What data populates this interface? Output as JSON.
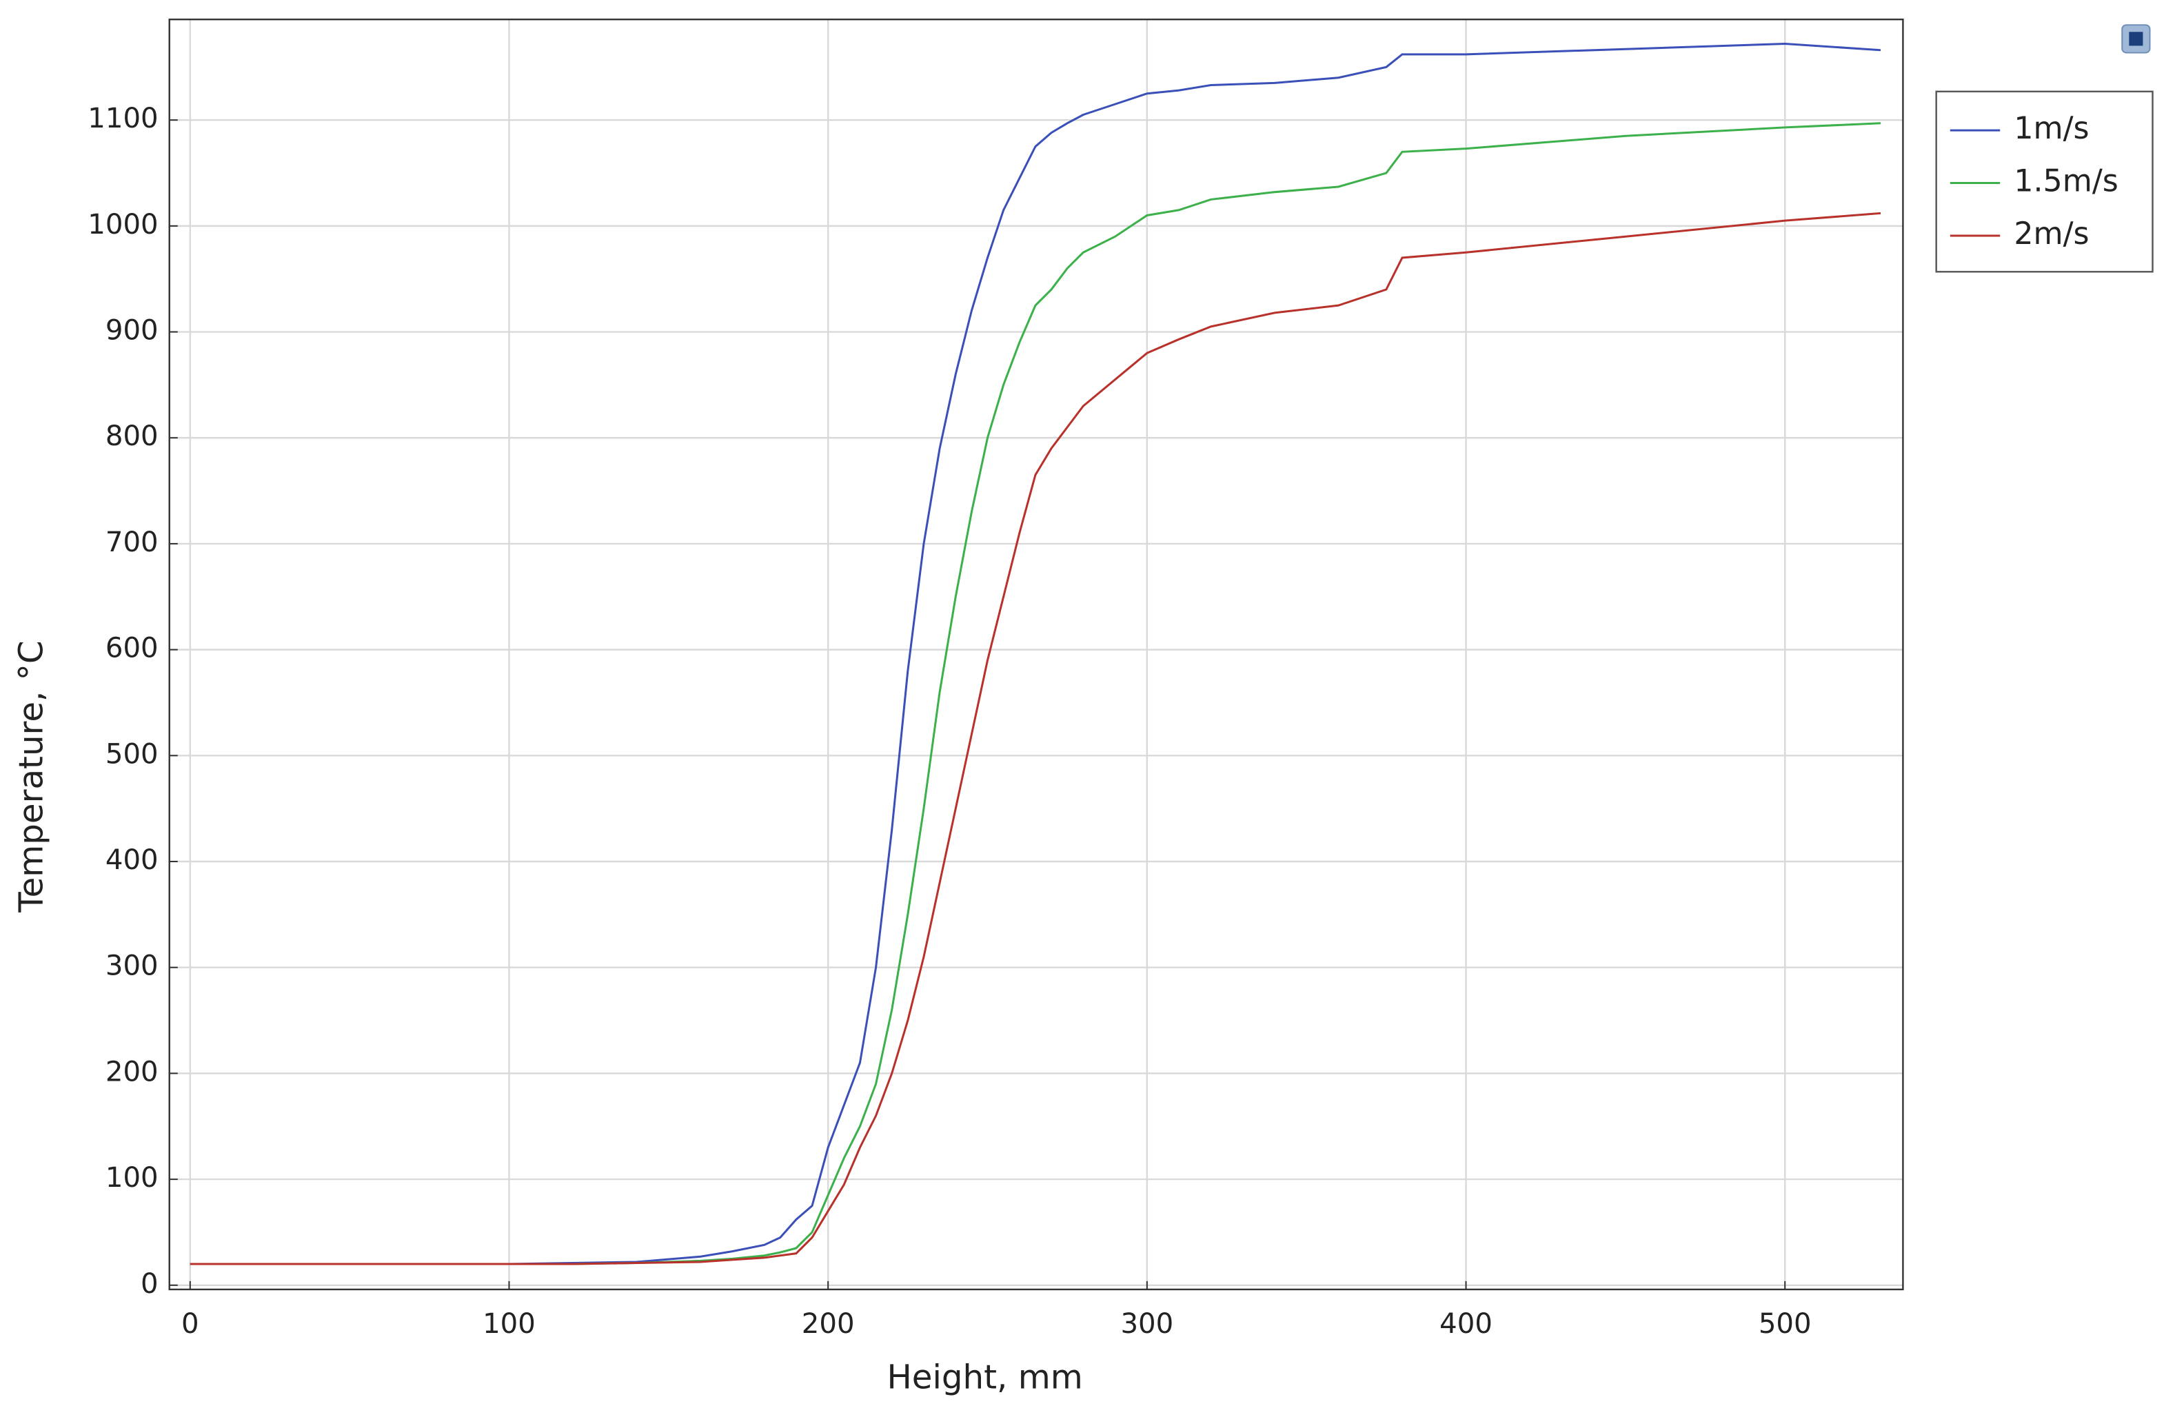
{
  "chart_data": {
    "type": "line",
    "x_label": "Height, mm",
    "y_label": "Temperature, °C",
    "x": [
      0,
      100,
      120,
      140,
      160,
      170,
      180,
      185,
      190,
      195,
      200,
      205,
      210,
      215,
      220,
      225,
      230,
      235,
      240,
      245,
      250,
      255,
      260,
      265,
      270,
      275,
      280,
      290,
      300,
      310,
      320,
      340,
      360,
      375,
      380,
      400,
      450,
      500,
      530
    ],
    "series": [
      {
        "name": "1m/s",
        "color": "#3a4fb8",
        "values": [
          20,
          20,
          21,
          22,
          27,
          32,
          38,
          45,
          62,
          75,
          130,
          170,
          210,
          300,
          430,
          580,
          700,
          790,
          860,
          920,
          970,
          1015,
          1045,
          1075,
          1088,
          1097,
          1105,
          1115,
          1125,
          1128,
          1133,
          1135,
          1140,
          1150,
          1162,
          1162,
          1167,
          1172,
          1166
        ]
      },
      {
        "name": "1.5m/s",
        "color": "#3cb04a",
        "values": [
          20,
          20,
          20,
          21,
          23,
          25,
          28,
          31,
          35,
          50,
          85,
          120,
          150,
          190,
          260,
          350,
          450,
          560,
          650,
          730,
          800,
          850,
          890,
          925,
          940,
          960,
          975,
          990,
          1010,
          1015,
          1025,
          1032,
          1037,
          1050,
          1070,
          1073,
          1085,
          1093,
          1097
        ]
      },
      {
        "name": "2m/s",
        "color": "#b8312a",
        "values": [
          20,
          20,
          20,
          21,
          22,
          24,
          26,
          28,
          30,
          45,
          70,
          95,
          130,
          160,
          200,
          250,
          310,
          380,
          450,
          520,
          590,
          650,
          710,
          765,
          790,
          810,
          830,
          855,
          880,
          893,
          905,
          918,
          925,
          940,
          970,
          975,
          990,
          1005,
          1012
        ]
      }
    ],
    "xlim": [
      -6.5,
      537
    ],
    "ylim": [
      -4,
      1195
    ],
    "xticks": [
      0,
      100,
      200,
      300,
      400,
      500
    ],
    "yticks": [
      0,
      100,
      200,
      300,
      400,
      500,
      600,
      700,
      800,
      900,
      1000,
      1100
    ],
    "grid": true,
    "legend": "outside-right"
  }
}
